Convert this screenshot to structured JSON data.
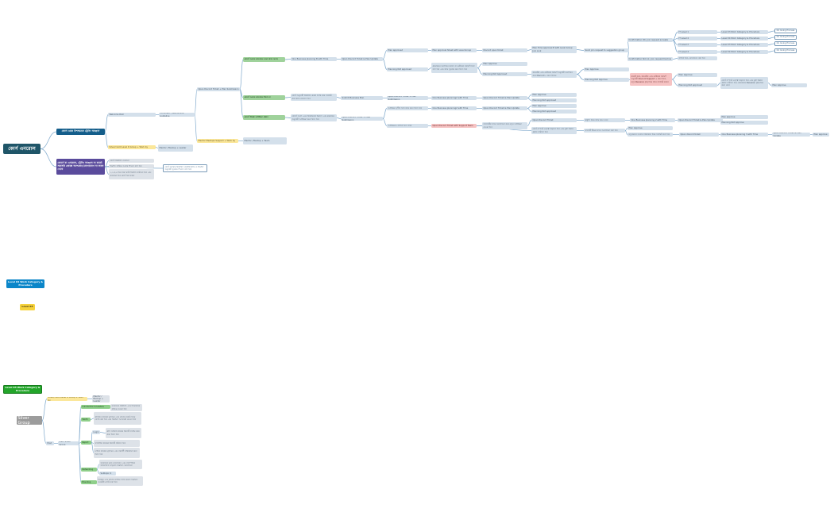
{
  "colors": {
    "edge": "#7ea8cc",
    "root": "#1f5568",
    "accent_blue": "#135d8a",
    "accent_purple": "#5a4b9c",
    "green": "#9fd29b",
    "yellow": "#fbe79a",
    "red": "#f6c3c3"
  },
  "nodes": [
    {
      "id": "root",
      "parent": null,
      "text": "কোর্স এনরোল",
      "style": "root"
    },
    {
      "id": "a",
      "parent": "root",
      "text": "কোর্স থেকে বিশদভাবে ট্রেনিং আহ্বান",
      "style": "blue"
    },
    {
      "id": "b",
      "parent": "root",
      "text": "কোর্সে যা এনরোল, ট্রেনিং আহ্বান না করেই সরাসরি প্রকল্পে অংশগ্রহণ/যোগাযোগ না জানা থেকে",
      "style": "purple"
    },
    {
      "id": "a1",
      "parent": "a",
      "text": "Welcome Post",
      "style": "light"
    },
    {
      "id": "a1a",
      "parent": "a1",
      "text": "Comment / Welcome & guideline",
      "style": "light"
    },
    {
      "id": "a2",
      "parent": "a",
      "text": "Silver/ Gold Level D Group + Work by",
      "style": "yellow"
    },
    {
      "id": "a2a",
      "parent": "a2",
      "text": "Mentor / Backup + Leader",
      "style": "light"
    },
    {
      "id": "b1",
      "parent": "b",
      "text": "কোর্স বিস্তারিত দেখানো",
      "style": "graybox"
    },
    {
      "id": "b2",
      "parent": "b",
      "text": "ইমেইল পাঠিয়ে আবার শিখতে বলা হবে",
      "style": "graybox"
    },
    {
      "id": "b3",
      "parent": "b",
      "text": "১,২,৩,৪ দিন করে অটো ইমেইল পাঠানো হবে এবং জানানো হবে কোর্স শুরু করুন",
      "style": "graybox"
    },
    {
      "id": "b4",
      "parent": "b",
      "text": "কোর্স অবস্থায় বিস্তারিত ভেরিফিকেশন ও ইমেইল অনুযায়ী পুনরায় শিখতে বলা হবে",
      "style": "outline"
    },
    {
      "id": "p",
      "parent": "a1a",
      "text": "Open Discord Ticket + Plan Submission",
      "style": "light"
    },
    {
      "id": "m",
      "parent": "a1a",
      "text": "Mentor Meetups Support + Work by",
      "style": "yellow"
    },
    {
      "id": "m1",
      "parent": "m",
      "text": "Mentor / Backup + Team",
      "style": "light"
    },
    {
      "id": "g1",
      "parent": "p",
      "text": "কোর্সে আমার প্রয়োজন মতো প্ল্যান আছে",
      "style": "green"
    },
    {
      "id": "g2",
      "parent": "p",
      "text": "কোর্সে আমার প্রয়োজন মিলে না",
      "style": "green"
    },
    {
      "id": "g3",
      "parent": "p",
      "text": "কোর্সে বিকল্প আইডিয়া প্রস্তাব",
      "style": "green"
    },
    {
      "id": "g1a",
      "parent": "g1",
      "text": "One Business planning B with Time",
      "style": "light"
    },
    {
      "id": "g1b",
      "parent": "g1a",
      "text": "Open Discord Ticket & Plan Update",
      "style": "light"
    },
    {
      "id": "pa",
      "parent": "g1b",
      "text": "Plan approved",
      "style": "light"
    },
    {
      "id": "pa1",
      "parent": "pa",
      "text": "Plan approval Sheet with Level Group",
      "style": "light"
    },
    {
      "id": "pa2",
      "parent": "pa1",
      "text": "Discord open ticket",
      "style": "light"
    },
    {
      "id": "pa3",
      "parent": "pa2",
      "text": "Plan Time approval B with Level Group Join Link",
      "style": "light"
    },
    {
      "id": "pa4",
      "parent": "pa3",
      "text": "Send join request to suggestion group",
      "style": "light"
    },
    {
      "id": "ok",
      "parent": "pa4",
      "text": "Confirmation OK, Join request accepte",
      "style": "light"
    },
    {
      "id": "nok",
      "parent": "pa4",
      "text": "Confirmation Not ok, Join request Decline",
      "style": "light"
    },
    {
      "id": "l1",
      "parent": "ok",
      "text": "IT Level 1",
      "style": "light"
    },
    {
      "id": "l2",
      "parent": "ok",
      "text": "IT Level 4",
      "style": "light"
    },
    {
      "id": "l3",
      "parent": "ok",
      "text": "IT Level 2",
      "style": "light"
    },
    {
      "id": "l4",
      "parent": "ok",
      "text": "IT Level 4",
      "style": "light"
    },
    {
      "id": "w1",
      "parent": "l1",
      "text": "Level 03 Work Category & Procedure",
      "style": "light"
    },
    {
      "id": "w2",
      "parent": "l2",
      "text": "Level 04 Work Category & Procedure",
      "style": "light"
    },
    {
      "id": "w3",
      "parent": "l3",
      "text": "Level 03 Work Category & Procedure",
      "style": "light"
    },
    {
      "id": "w4",
      "parent": "l4",
      "text": "Level 04 Work Category & Procedure",
      "style": "light"
    },
    {
      "id": "o1",
      "parent": "w1",
      "text": "On Going Process",
      "style": "outline"
    },
    {
      "id": "o2",
      "parent": "w2",
      "text": "On Going Process",
      "style": "outline"
    },
    {
      "id": "o3",
      "parent": "w3",
      "text": "On Going Process",
      "style": "outline"
    },
    {
      "id": "o4",
      "parent": "w4",
      "text": "On Going Process",
      "style": "outline"
    },
    {
      "id": "nok1",
      "parent": "nok",
      "text": "বাতিল হবে, যোগাযোগ করা হবে",
      "style": "light"
    },
    {
      "id": "pn",
      "parent": "g1b",
      "text": "Planning Not approved",
      "style": "light"
    },
    {
      "id": "pn1",
      "parent": "pn",
      "text": "প্রয়োজনে সংশোধন করতে বা মেন্টরের পরামর্শ নিতে বলা হবে এবং প্ল্যান পুনরায় জমা দিতে হবে",
      "style": "light"
    },
    {
      "id": "pn2",
      "parent": "pn1",
      "text": "Plan Approve",
      "style": "light"
    },
    {
      "id": "pn3",
      "parent": "pn1",
      "text": "Planning Not Approved",
      "style": "light"
    },
    {
      "id": "pn4",
      "parent": "pn3",
      "text": "কমেন্টের এবং মেন্টরের পরামর্শ অনুযায়ী সংশোধন করে Discord এ জমা দিবেন",
      "style": "light"
    },
    {
      "id": "pn5",
      "parent": "pn4",
      "text": "Plan Approve",
      "style": "light"
    },
    {
      "id": "pn6",
      "parent": "pn4",
      "text": "Planning Not Approve",
      "style": "light"
    },
    {
      "id": "pn7",
      "parent": "pn6",
      "text": "কমেন্ট করে, কমেন্টের এবং মেন্টরের পরামর্শ অনুযায়ী Discord Support এ জমা দিবে, নতুন Revision (1) দিয়ে প্ল্যান সাবমিট করবে",
      "style": "red"
    },
    {
      "id": "pn8",
      "parent": "pn7",
      "text": "Plan Approve",
      "style": "light"
    },
    {
      "id": "pn9",
      "parent": "pn7",
      "text": "Planning Not approved",
      "style": "light"
    },
    {
      "id": "pn10",
      "parent": "pn9",
      "text": "কোর্স সম্পর্কে নেতৃত্ব বাড়াতে হবে এবং মুক্ত চিন্তার প্রস্তাব পাঠাতে হবে, প্রয়োজনে Revision (2) দিয়ে জমা দেবে",
      "style": "light"
    },
    {
      "id": "pn11",
      "parent": "pn10",
      "text": "Plan Approve",
      "style": "light"
    },
    {
      "id": "g2a",
      "parent": "g2",
      "text": "কোর্স অনুযায়ী বিস্তারিত প্রকল্প তৈরি করে সাবমিট করে প্ল্যান দেখাতে হবে",
      "style": "light"
    },
    {
      "id": "g2b",
      "parent": "g2a",
      "text": "Submit Business Plan",
      "style": "light"
    },
    {
      "id": "g2c",
      "parent": "g2b",
      "text": "Open Discord Ticket + Plan Submission",
      "style": "light"
    },
    {
      "id": "g2d",
      "parent": "g2c",
      "text": "One Business planning2 with Time",
      "style": "light"
    },
    {
      "id": "g2e",
      "parent": "g2d",
      "text": "Open Discord Ticket & Plan Update",
      "style": "light"
    },
    {
      "id": "g2f",
      "parent": "g2e",
      "text": "Plan Approve",
      "style": "light"
    },
    {
      "id": "g2g",
      "parent": "g2e",
      "text": "Planning Not approved",
      "style": "light"
    },
    {
      "id": "g3a",
      "parent": "g3",
      "text": "কোর্সে আছে এমন বিকল্পভাবে ভিন্নতা এবং প্রয়োজন অনুযায়ী আইডিয়া জমা দিতে হবে",
      "style": "light"
    },
    {
      "id": "g3b",
      "parent": "g3a",
      "text": "Open Discord Ticket + Idea Submission",
      "style": "light"
    },
    {
      "id": "g3c",
      "parent": "g3b",
      "text": "আইডিয়া গৃহীত হলে প্ল্যান জমা দিতে হবে",
      "style": "light"
    },
    {
      "id": "g3d",
      "parent": "g3c",
      "text": "One Business planning2 with Time",
      "style": "light"
    },
    {
      "id": "g3e",
      "parent": "g3d",
      "text": "Open Discord Ticket & Plan Update",
      "style": "light"
    },
    {
      "id": "g3f",
      "parent": "g3e",
      "text": "Plan Approve",
      "style": "light"
    },
    {
      "id": "g3g",
      "parent": "g3e",
      "text": "Planning Not approved",
      "style": "light"
    },
    {
      "id": "r",
      "parent": "g3b",
      "text": "আইডিয়াও বাতিল হতে পারে",
      "style": "light"
    },
    {
      "id": "r1",
      "parent": "r",
      "text": "Open Discord Ticket with Support Team",
      "style": "red"
    },
    {
      "id": "r2",
      "parent": "r1",
      "text": "সাপোর্টের সাথে আলোচনা করে নতুন আইডিয়া দেওয়া হবে",
      "style": "light"
    },
    {
      "id": "r3",
      "parent": "r2",
      "text": "Open Discord Ticket",
      "style": "light"
    },
    {
      "id": "r4",
      "parent": "r3",
      "text": "প্রস্তুতি নিয়ে প্ল্যান জমা দেবে",
      "style": "light"
    },
    {
      "id": "r5",
      "parent": "r4",
      "text": "One Business planning 2 with Time",
      "style": "light"
    },
    {
      "id": "r6",
      "parent": "r5",
      "text": "Open Discord Ticket & Plan Update",
      "style": "light"
    },
    {
      "id": "r7",
      "parent": "r6",
      "text": "Plan approve",
      "style": "light"
    },
    {
      "id": "r8",
      "parent": "r6",
      "text": "Planning Not Approve",
      "style": "light"
    },
    {
      "id": "s1",
      "parent": "r1",
      "text": "কোর্স সম্পর্কে নেতৃত্ব বাড়াতে হবে এবং মুক্ত চিন্তার প্রস্তাব পাঠাতে হবে",
      "style": "light"
    },
    {
      "id": "s2",
      "parent": "s1",
      "text": "সাপোর্ট টিমের সাথে আলোচনা করা হবে",
      "style": "light"
    },
    {
      "id": "s3",
      "parent": "s2",
      "text": "Plan Approve",
      "style": "light"
    },
    {
      "id": "s4",
      "parent": "s2",
      "text": "নতুনভাবে আবার পরিকল্পনা দিয়ে সাবমিট করা হবে",
      "style": "light"
    },
    {
      "id": "s5",
      "parent": "s4",
      "text": "Open discord ticket",
      "style": "light"
    },
    {
      "id": "s6",
      "parent": "s5",
      "text": "One Business planning 3 with Time",
      "style": "light"
    },
    {
      "id": "s7",
      "parent": "s6",
      "text": "Open Discord Ticket & Plan Update",
      "style": "light"
    },
    {
      "id": "s8",
      "parent": "s7",
      "text": "Plan approve",
      "style": "light"
    },
    {
      "id": "f1",
      "parent": null,
      "text": "Level 04 Work Category & Procedure",
      "style": "lblue"
    },
    {
      "id": "f2",
      "parent": null,
      "text": "Level 03",
      "style": "lyellow"
    },
    {
      "id": "f3",
      "parent": null,
      "text": "Level 03 Work Category & Procedure",
      "style": "lgreen"
    },
    {
      "id": "sg",
      "parent": null,
      "text": "Silver Group",
      "style": "gray"
    },
    {
      "id": "sg1",
      "parent": "sg",
      "text": "Silver/ Gold Level D Group + Work by",
      "style": "yellow"
    },
    {
      "id": "sg1a",
      "parent": "sg1",
      "text": "Mentor / Backup + Leader",
      "style": "graybox"
    },
    {
      "id": "sg2",
      "parent": "sg",
      "text": "Post",
      "style": "light"
    },
    {
      "id": "sg3",
      "parent": "sg2",
      "text": "Main Silver Group",
      "style": "light"
    },
    {
      "id": "t1",
      "parent": "sg3",
      "text": "Introduction & Leaders",
      "style": "sgreen"
    },
    {
      "id": "t1a",
      "parent": "t1",
      "text": "সদস্যদের পরিচিতি এবং লিডারদের পরিচয় দেওয়া হবে",
      "style": "graybox"
    },
    {
      "id": "t2",
      "parent": "sg3",
      "text": "Worth",
      "style": "sgreen"
    },
    {
      "id": "t2a",
      "parent": "t2",
      "text": "প্রতিদিন কাজের মূল্যায়ন এবং গ্রুপের অর্জন নিয়ে পোস্ট করা হবে এবং নিয়মিত আপডেট দেওয়া হবে",
      "style": "graybox"
    },
    {
      "id": "t3",
      "parent": "sg3",
      "text": "Report",
      "style": "sgreen"
    },
    {
      "id": "t3a",
      "parent": "t3",
      "text": "Login",
      "style": "light"
    },
    {
      "id": "t3b",
      "parent": "t3a",
      "text": "প্রতি সপ্তাহে কাজের রিপোর্ট লগইন করে জমা দিতে হবে",
      "style": "graybox"
    },
    {
      "id": "t3c",
      "parent": "t3",
      "text": "সাপ্তাহিক কাজের রিপোর্ট পাঠাতে হবে",
      "style": "graybox"
    },
    {
      "id": "t3d",
      "parent": "t3",
      "text": "মাসিক কাজের মূল্যায়ন এবং পরবর্তী পরিকল্পনা জমা দিতে হবে",
      "style": "graybox"
    },
    {
      "id": "t4",
      "parent": "sg3",
      "text": "Networking",
      "style": "sgreen"
    },
    {
      "id": "t4a",
      "parent": "t4",
      "text": "সদস্যদের মধ্যে যোগাযোগ এবং পারস্পরিক সহযোগিতা বাড়াতে নিয়মিত আলোচনা",
      "style": "graybox"
    },
    {
      "id": "t4b",
      "parent": "t4",
      "text": "Subtopic 2",
      "style": "light"
    },
    {
      "id": "t5",
      "parent": "sg3",
      "text": "Branding",
      "style": "sgreen"
    },
    {
      "id": "t5a",
      "parent": "t5",
      "text": "নিজের এবং গ্রুপের ব্র্যান্ডিং তৈরি করতে নিয়মিত কনটেন্ট পোস্ট করা হবে",
      "style": "graybox"
    }
  ]
}
